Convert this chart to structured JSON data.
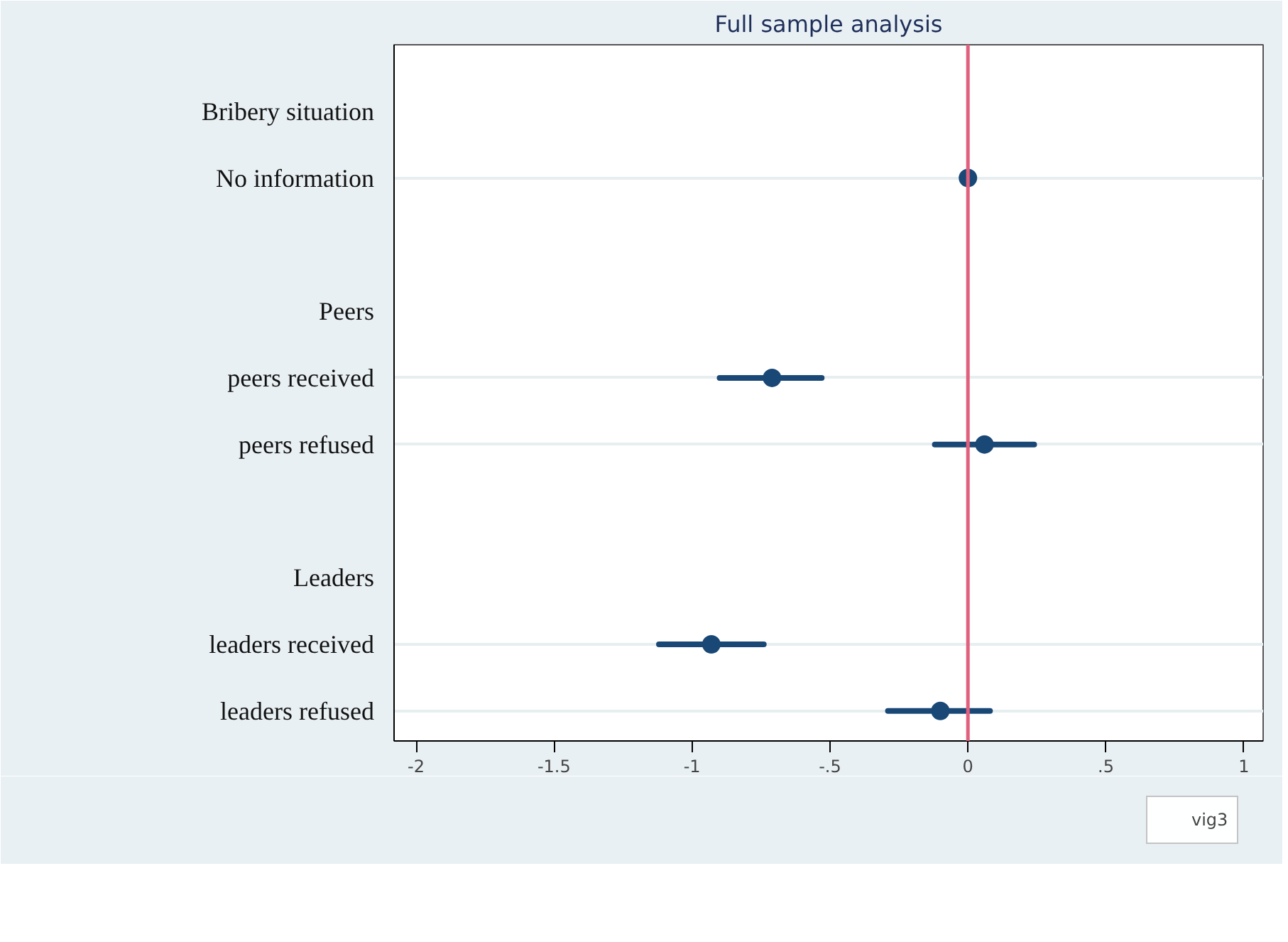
{
  "chart_data": {
    "type": "scatter",
    "orientation": "horizontal",
    "title": "Full sample analysis",
    "categories": [
      "Bribery situation",
      "No information",
      null,
      "Peers",
      "peers received",
      "peers refused",
      null,
      "Leaders",
      "leaders received",
      "leaders refused"
    ],
    "series": [
      {
        "name": "vig3",
        "color": "#1a4876",
        "values": [
          null,
          0,
          null,
          null,
          -0.71,
          0.06,
          null,
          null,
          -0.93,
          -0.1
        ],
        "errors": [
          null,
          null,
          null,
          null,
          [
            -0.9,
            -0.53
          ],
          [
            -0.12,
            0.24
          ],
          null,
          null,
          [
            -1.12,
            -0.74
          ],
          [
            -0.29,
            0.08
          ]
        ]
      }
    ],
    "xlim": [
      -2.08,
      1.07
    ],
    "xticks": [
      -2,
      {
        "value": -1.5,
        "label": "-1.5"
      },
      -1,
      {
        "value": -0.5,
        "label": "-.5"
      },
      0,
      {
        "value": 0.5,
        "label": ".5"
      },
      1
    ],
    "ref_lines": [
      {
        "axis": "x",
        "value": 0,
        "label": null,
        "color": "#e0607e"
      }
    ],
    "grid": "y",
    "legend": "bottom",
    "marker": "circle"
  }
}
